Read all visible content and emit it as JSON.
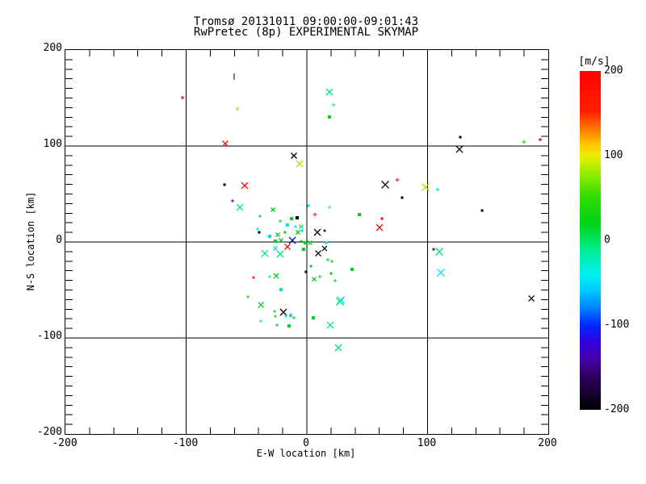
{
  "title": {
    "line1": "Tromsø 20131011 09:00:00-09:01:43",
    "line2": "RwPretec (8p) EXPERIMENTAL SKYMAP"
  },
  "axes": {
    "xlabel": "E-W location [km]",
    "ylabel": "N-S location [km]",
    "x_ticks": [
      "-200",
      "-100",
      "0",
      "100",
      "200"
    ],
    "y_ticks": [
      "200",
      "100",
      "0",
      "-100",
      "-200"
    ],
    "xlim": [
      -200,
      200
    ],
    "ylim": [
      -200,
      200
    ]
  },
  "colorbar": {
    "label": "[m/s]",
    "ticks": [
      "200",
      "100",
      "0",
      "-100",
      "-200"
    ],
    "min": -200,
    "max": 200,
    "gradient_stops": [
      [
        0,
        "#ff0000"
      ],
      [
        12,
        "#ff2000"
      ],
      [
        17,
        "#ff7700"
      ],
      [
        22,
        "#ffcc00"
      ],
      [
        25,
        "#eeee00"
      ],
      [
        30,
        "#99ee00"
      ],
      [
        37,
        "#33dd00"
      ],
      [
        45,
        "#00d414"
      ],
      [
        50,
        "#00e664"
      ],
      [
        55,
        "#00eeb2"
      ],
      [
        60,
        "#00f0f0"
      ],
      [
        65,
        "#00c8ff"
      ],
      [
        70,
        "#0080ff"
      ],
      [
        75,
        "#0028ff"
      ],
      [
        80,
        "#3000e0"
      ],
      [
        85,
        "#4800a8"
      ],
      [
        90,
        "#300060"
      ],
      [
        95,
        "#180030"
      ],
      [
        100,
        "#000000"
      ]
    ]
  },
  "chart_data": {
    "type": "scatter",
    "title": "Tromsø 20131011 09:00:00-09:01:43 / RwPretec (8p) EXPERIMENTAL SKYMAP",
    "xlabel": "E-W location [km]",
    "ylabel": "N-S location [km]",
    "xlim": [
      -200,
      200
    ],
    "ylim": [
      -200,
      200
    ],
    "grid": true,
    "gridlines_km": [
      -100,
      0,
      100
    ],
    "legend": "colorbar [m/s] from -200 (black) to 200 (red)",
    "marker_key": "x=diagonal-cross, p=plus, d=dot, v=vertical-bar; s=half-size px",
    "points": [
      [
        -103.0,
        150.4,
        "#ff0000",
        "x",
        1.5
      ],
      [
        -60.2,
        172.3,
        "#000000",
        "v",
        4
      ],
      [
        -57.5,
        138.7,
        "#ffaa00",
        "p",
        2.5
      ],
      [
        -67.6,
        102.5,
        "#ee0000",
        "x",
        3.5
      ],
      [
        -10.7,
        89.9,
        "#000000",
        "x",
        3.5
      ],
      [
        -6.0,
        81.5,
        "#bbdd00",
        "x",
        4
      ],
      [
        -68.2,
        59.7,
        "#000000",
        "d",
        1.5
      ],
      [
        -51.5,
        58.8,
        "#ff0000",
        "x",
        4
      ],
      [
        -61.5,
        42.9,
        "#2200cc",
        "p",
        2
      ],
      [
        18.7,
        156.3,
        "#00e67a",
        "x",
        4
      ],
      [
        22.1,
        142.9,
        "#00e67a",
        "p",
        2.5
      ],
      [
        18.7,
        130.3,
        "#00cc22",
        "d",
        2
      ],
      [
        127.1,
        109.2,
        "#000000",
        "d",
        1.5
      ],
      [
        126.4,
        96.6,
        "#000000",
        "x",
        4
      ],
      [
        74.9,
        64.7,
        "#ff0000",
        "p",
        2.5
      ],
      [
        64.9,
        59.7,
        "#000000",
        "x",
        4.5
      ],
      [
        98.3,
        57.1,
        "#aadd00",
        "x",
        4.5
      ],
      [
        108.4,
        54.6,
        "#00dddd",
        "d",
        1.5
      ],
      [
        78.9,
        46.2,
        "#000000",
        "d",
        1.5
      ],
      [
        179.9,
        104.2,
        "#00cc00",
        "p",
        2.5
      ],
      [
        193.3,
        106.7,
        "#ff0000",
        "d",
        1.5
      ],
      [
        145.2,
        32.8,
        "#000000",
        "d",
        1.5
      ],
      [
        186.0,
        -58.8,
        "#000000",
        "x",
        3.5
      ],
      [
        105.0,
        -7.6,
        "#000000",
        "p",
        2
      ],
      [
        109.7,
        -10.1,
        "#00e67a",
        "x",
        4.5
      ],
      [
        111.0,
        -31.9,
        "#00e0ff",
        "x",
        4.5
      ],
      [
        6.7,
        28.6,
        "#ff0000",
        "p",
        2.5
      ],
      [
        18.7,
        36.1,
        "#00dddd",
        "p",
        2
      ],
      [
        43.5,
        28.6,
        "#00cc22",
        "d",
        2
      ],
      [
        62.2,
        24.4,
        "#ff0000",
        "d",
        1.5
      ],
      [
        60.2,
        15.1,
        "#dd0000",
        "x",
        4
      ],
      [
        8.7,
        10.1,
        "#000000",
        "x",
        4
      ],
      [
        14.7,
        11.8,
        "#000000",
        "p",
        2
      ],
      [
        16.1,
        -0.8,
        "#00dddd",
        "d",
        1.5
      ],
      [
        14.7,
        -6.7,
        "#000000",
        "x",
        3
      ],
      [
        9.4,
        -11.8,
        "#000000",
        "x",
        3.5
      ],
      [
        17.4,
        -18.5,
        "#00cc22",
        "p",
        2
      ],
      [
        20.7,
        -20.2,
        "#00cc22",
        "p",
        2
      ],
      [
        3.3,
        -25.2,
        "#00cc22",
        "d",
        1.5
      ],
      [
        37.5,
        -28.6,
        "#00cc22",
        "d",
        2
      ],
      [
        20.1,
        -32.8,
        "#00cc22",
        "d",
        1.5
      ],
      [
        10.7,
        -36.1,
        "#00cc22",
        "p",
        2
      ],
      [
        23.4,
        -40.3,
        "#00cc22",
        "p",
        2
      ],
      [
        28.1,
        -60.5,
        "#00e0ff",
        "x",
        4.5
      ],
      [
        -55.5,
        36.1,
        "#00e67a",
        "x",
        4
      ],
      [
        -38.8,
        26.9,
        "#00cc22",
        "p",
        2
      ],
      [
        -28.1,
        33.6,
        "#00cc22",
        "x",
        2.5
      ],
      [
        -8.0,
        25.2,
        "#000000",
        "d",
        2
      ],
      [
        -12.7,
        24.4,
        "#00cc22",
        "d",
        2
      ],
      [
        -22.1,
        21.8,
        "#00cc22",
        "p",
        2
      ],
      [
        -16.1,
        17.6,
        "#00dddd",
        "d",
        2
      ],
      [
        -9.4,
        16.0,
        "#00dddd",
        "p",
        2
      ],
      [
        -4.7,
        16.0,
        "#00e67a",
        "x",
        2.5
      ],
      [
        -7.4,
        10.1,
        "#00cc22",
        "x",
        2.5
      ],
      [
        -4.0,
        11.8,
        "#00dddd",
        "d",
        1.5
      ],
      [
        -40.8,
        13.4,
        "#00dddd",
        "p",
        2
      ],
      [
        -39.5,
        10.1,
        "#000000",
        "d",
        1.5
      ],
      [
        -30.8,
        5.9,
        "#00dddd",
        "d",
        2
      ],
      [
        -24.1,
        7.6,
        "#00cc22",
        "x",
        2.5
      ],
      [
        -18.1,
        10.1,
        "#00cc22",
        "d",
        1.5
      ],
      [
        -26.1,
        0.8,
        "#00cc22",
        "d",
        2
      ],
      [
        -21.4,
        1.7,
        "#00cc22",
        "x",
        2.5
      ],
      [
        -12.0,
        1.7,
        "#0000bb",
        "x",
        4
      ],
      [
        -4.7,
        0.8,
        "#00cc22",
        "p",
        2
      ],
      [
        -1.3,
        -0.8,
        "#00cc22",
        "d",
        2
      ],
      [
        -16.1,
        -5.0,
        "#ff0000",
        "x",
        3.5
      ],
      [
        -26.1,
        -6.7,
        "#00dddd",
        "x",
        2.5
      ],
      [
        -2.7,
        -7.6,
        "#00cc22",
        "d",
        2
      ],
      [
        -34.8,
        -11.8,
        "#00e67a",
        "x",
        4
      ],
      [
        -22.1,
        -12.6,
        "#00e67a",
        "x",
        4
      ],
      [
        2.7,
        -0.8,
        "#00cc22",
        "x",
        2.5
      ],
      [
        -0.7,
        -31.1,
        "#000000",
        "d",
        1.5
      ],
      [
        6.0,
        -38.7,
        "#00cc22",
        "x",
        2.5
      ],
      [
        -44.1,
        -37.0,
        "#ff0000",
        "p",
        2
      ],
      [
        -30.8,
        -36.1,
        "#00dddd",
        "p",
        2
      ],
      [
        -25.4,
        -35.3,
        "#00cc22",
        "x",
        3
      ],
      [
        1.3,
        37.8,
        "#00dddd",
        "d",
        1.5
      ],
      [
        -48.8,
        -57.1,
        "#00cc22",
        "p",
        2
      ],
      [
        -21.4,
        -49.6,
        "#00dddd",
        "d",
        2
      ],
      [
        -38.1,
        -65.5,
        "#00cc22",
        "x",
        3.5
      ],
      [
        -19.4,
        -73.1,
        "#000000",
        "x",
        4
      ],
      [
        -26.8,
        -72.3,
        "#00cc22",
        "p",
        2
      ],
      [
        -26.1,
        -77.3,
        "#00cc22",
        "p",
        2
      ],
      [
        -17.4,
        -77.3,
        "#00dddd",
        "p",
        2
      ],
      [
        -13.4,
        -76.5,
        "#00dddd",
        "d",
        2
      ],
      [
        -10.7,
        -79.0,
        "#00cc22",
        "p",
        2
      ],
      [
        -38.1,
        -82.4,
        "#00dddd",
        "p",
        2
      ],
      [
        -24.7,
        -86.6,
        "#00cc22",
        "p",
        2
      ],
      [
        -14.7,
        -87.4,
        "#00cc22",
        "d",
        2
      ],
      [
        5.4,
        -79.0,
        "#00cc22",
        "d",
        2
      ],
      [
        27.4,
        -62.2,
        "#00e67a",
        "x",
        4.5
      ],
      [
        19.4,
        -86.6,
        "#00e67a",
        "x",
        4
      ],
      [
        26.1,
        -110.1,
        "#00e67a",
        "x",
        4
      ]
    ]
  }
}
